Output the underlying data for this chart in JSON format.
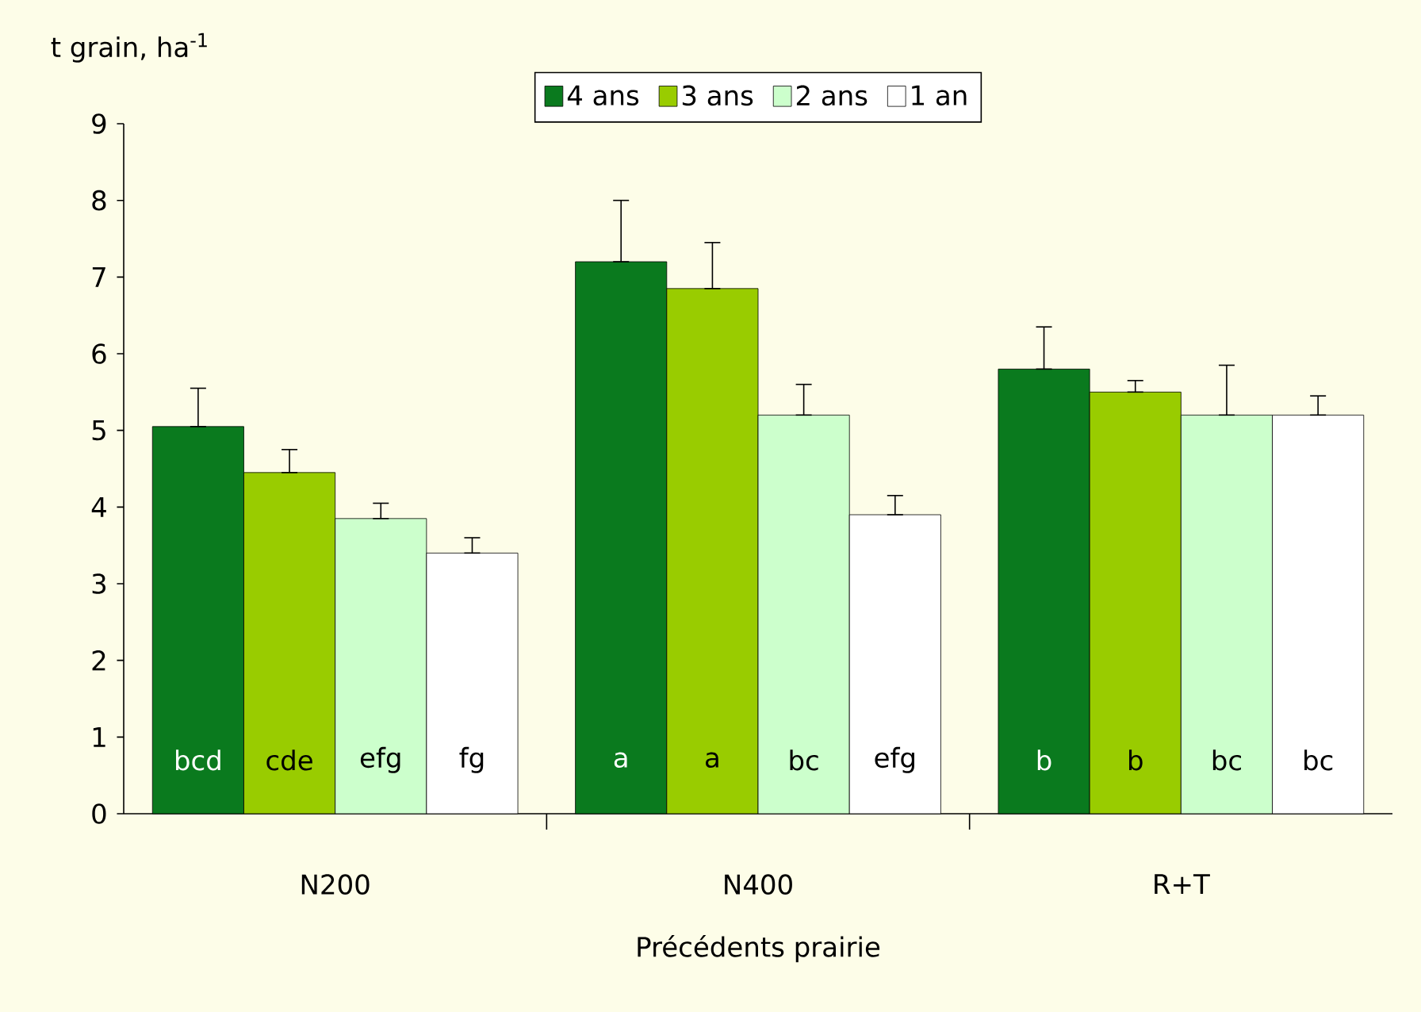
{
  "chart_data": {
    "type": "bar",
    "xlabel": "Précédents prairie",
    "ylabel": "t grain, ha$^{-1}$",
    "categories": [
      "N200",
      "N400",
      "R+T"
    ],
    "series": [
      {
        "name": "4 ans",
        "color": "#0a7a1e",
        "values": [
          5.05,
          7.2,
          5.8
        ],
        "errors": [
          [
            5.05,
            5.55
          ],
          [
            7.2,
            8.0
          ],
          [
            5.8,
            6.35
          ]
        ]
      },
      {
        "name": "3 ans",
        "color": "#99cc00",
        "values": [
          4.45,
          6.85,
          5.5
        ],
        "errors": [
          [
            4.45,
            4.75
          ],
          [
            6.85,
            7.45
          ],
          [
            5.5,
            5.65
          ]
        ]
      },
      {
        "name": "2 ans",
        "color": "#ccffcc",
        "values": [
          3.85,
          5.2,
          5.2
        ],
        "errors": [
          [
            3.85,
            4.05
          ],
          [
            5.2,
            5.6
          ],
          [
            5.2,
            5.85
          ]
        ]
      },
      {
        "name": "1 an",
        "color": "#ffffff",
        "values": [
          3.4,
          3.9,
          5.2
        ],
        "errors": [
          [
            3.4,
            3.6
          ],
          [
            3.9,
            4.15
          ],
          [
            5.2,
            5.45
          ]
        ]
      }
    ],
    "annotations": [
      "bcd",
      "cde",
      "efg",
      "fg",
      "a",
      "a",
      "bc",
      "efg",
      "b",
      "b",
      "bc",
      "bc"
    ],
    "ylim": [
      0,
      9
    ],
    "yticks": [
      0,
      1,
      2,
      3,
      4,
      5,
      6,
      7,
      8,
      9
    ],
    "legend": "top",
    "grid": false
  }
}
